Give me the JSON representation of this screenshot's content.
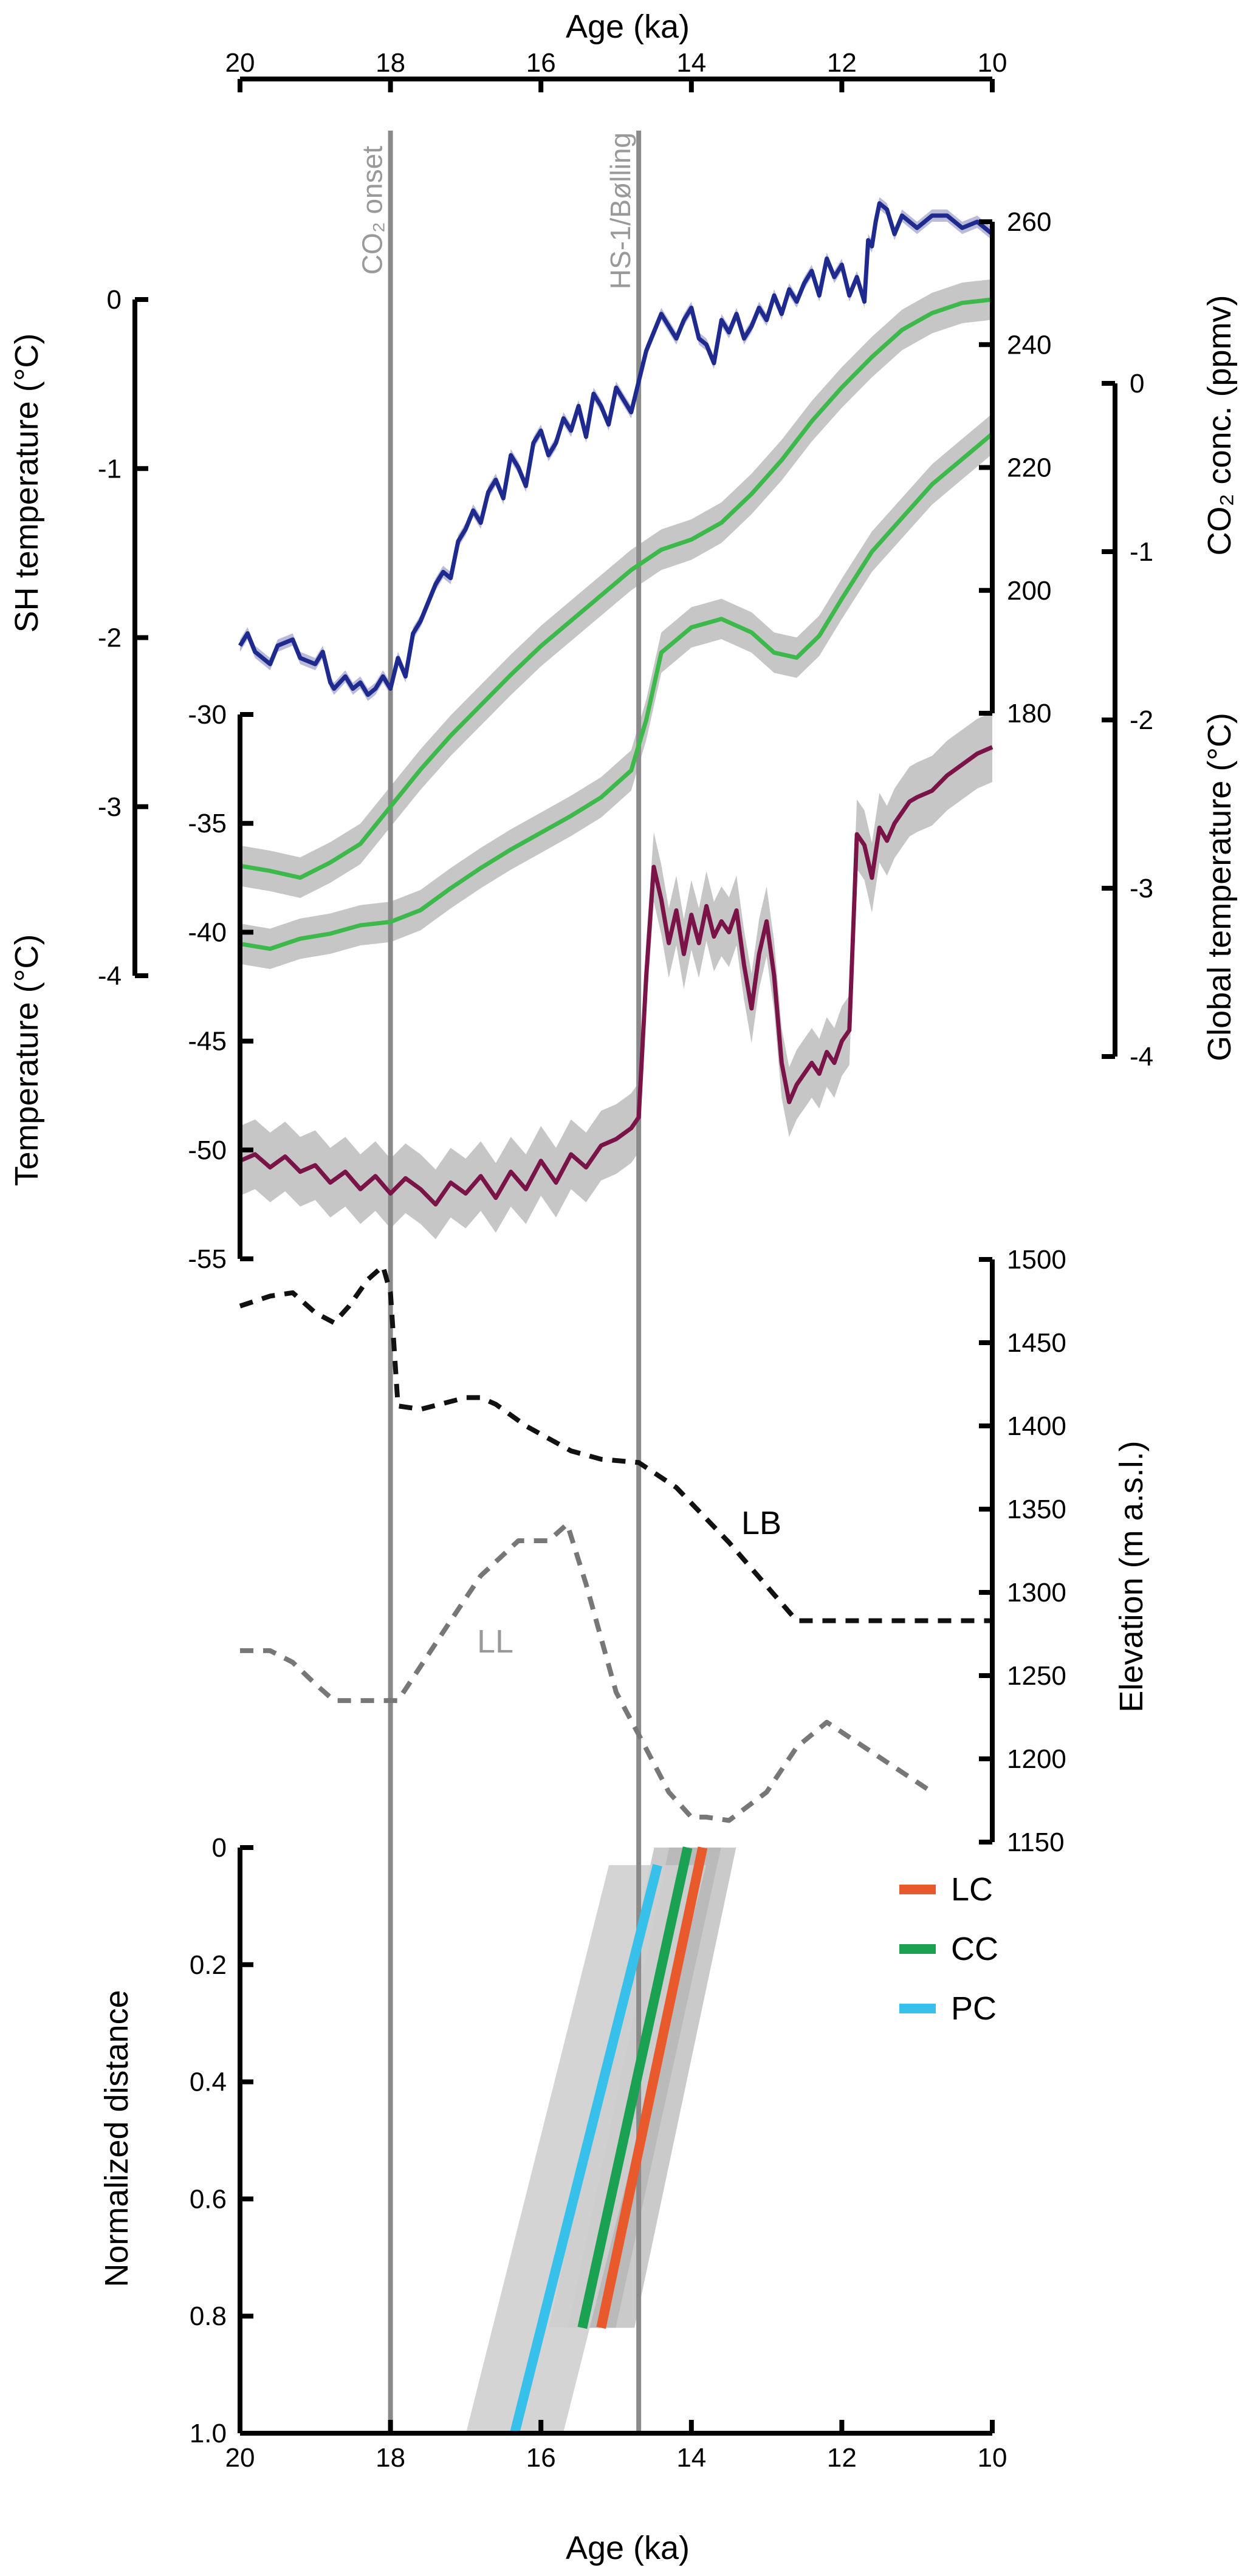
{
  "chart_data": [
    {
      "id": "top",
      "type": "line",
      "xlabel": "Age (ka)",
      "xlim": [
        20,
        10
      ],
      "xticks": [
        20,
        18,
        16,
        14,
        12,
        10
      ],
      "yaxes": [
        {
          "id": "sh",
          "label": "SH temperature (°C)",
          "ylim": [
            -4,
            0
          ],
          "ticks": [
            0,
            -1,
            -2,
            -3,
            -4
          ],
          "side": "left"
        },
        {
          "id": "co2",
          "label": "CO₂ conc. (ppmv)",
          "ylim": [
            180,
            260
          ],
          "ticks": [
            260,
            240,
            220,
            200,
            180
          ],
          "side": "right"
        },
        {
          "id": "glob",
          "label": "Global temperature (°C)",
          "ylim": [
            -4,
            0
          ],
          "ticks": [
            0,
            -1,
            -2,
            -3,
            -4
          ],
          "side": "right"
        },
        {
          "id": "temp",
          "label": "Temperature (°C)",
          "ylim": [
            -55,
            -30
          ],
          "ticks": [
            -30,
            -35,
            -40,
            -45,
            -50,
            -55
          ],
          "side": "left"
        },
        {
          "id": "elev",
          "label": "Elevation (m a.s.l.)",
          "ylim": [
            1150,
            1500
          ],
          "ticks": [
            1500,
            1450,
            1400,
            1350,
            1300,
            1250,
            1200,
            1150
          ],
          "side": "right"
        }
      ],
      "vlines": [
        {
          "x": 18.0,
          "label": "CO₂ onset"
        },
        {
          "x": 14.7,
          "label": "HS-1/Bølling"
        }
      ],
      "series": [
        {
          "name": "CO2",
          "axis": "co2",
          "color": "#1f2a8f",
          "x": [
            20,
            19.9,
            19.8,
            19.6,
            19.5,
            19.3,
            19.2,
            19.0,
            18.9,
            18.8,
            18.75,
            18.6,
            18.5,
            18.4,
            18.3,
            18.2,
            18.1,
            18.0,
            17.9,
            17.8,
            17.7,
            17.6,
            17.5,
            17.4,
            17.3,
            17.2,
            17.1,
            17.0,
            16.9,
            16.8,
            16.7,
            16.6,
            16.5,
            16.4,
            16.3,
            16.2,
            16.1,
            16.0,
            15.9,
            15.8,
            15.7,
            15.6,
            15.5,
            15.4,
            15.3,
            15.2,
            15.1,
            15.0,
            14.9,
            14.8,
            14.7,
            14.6,
            14.5,
            14.4,
            14.3,
            14.2,
            14.1,
            14.0,
            13.9,
            13.8,
            13.7,
            13.6,
            13.5,
            13.4,
            13.3,
            13.2,
            13.1,
            13.0,
            12.9,
            12.8,
            12.7,
            12.6,
            12.5,
            12.4,
            12.3,
            12.2,
            12.1,
            12.0,
            11.9,
            11.8,
            11.7,
            11.65,
            11.6,
            11.55,
            11.5,
            11.4,
            11.3,
            11.2,
            11.0,
            10.9,
            10.8,
            10.6,
            10.4,
            10.2,
            10.0
          ],
          "y": [
            191,
            193,
            190,
            188,
            191,
            192,
            189,
            188,
            190,
            185,
            184,
            186,
            184,
            185,
            183,
            184,
            186,
            184,
            189,
            186,
            193,
            195,
            198,
            201,
            203,
            202,
            208,
            210,
            213,
            211,
            216,
            218,
            215,
            222,
            220,
            217,
            224,
            226,
            222,
            224,
            228,
            226,
            230,
            225,
            232,
            230,
            227,
            233,
            231,
            229,
            234,
            239,
            242,
            245,
            243,
            241,
            244,
            246,
            241,
            240,
            237,
            244,
            242,
            245,
            241,
            243,
            246,
            244,
            248,
            245,
            249,
            247,
            250,
            252,
            248,
            254,
            251,
            253,
            248,
            251,
            247,
            257,
            256,
            260,
            263,
            262,
            258,
            261,
            259,
            260,
            261,
            261,
            259,
            260,
            258
          ]
        },
        {
          "name": "SH temperature",
          "axis": "sh",
          "color": "#3db84a",
          "x": [
            20,
            19.6,
            19.2,
            18.8,
            18.4,
            18.0,
            17.6,
            17.2,
            16.8,
            16.4,
            16.0,
            15.6,
            15.2,
            14.8,
            14.4,
            14.0,
            13.6,
            13.2,
            12.8,
            12.4,
            12.0,
            11.6,
            11.2,
            10.8,
            10.4,
            10.0
          ],
          "y": [
            -3.35,
            -3.38,
            -3.42,
            -3.33,
            -3.22,
            -3.0,
            -2.78,
            -2.58,
            -2.4,
            -2.22,
            -2.05,
            -1.9,
            -1.75,
            -1.6,
            -1.48,
            -1.42,
            -1.32,
            -1.15,
            -0.95,
            -0.72,
            -0.52,
            -0.34,
            -0.18,
            -0.08,
            -0.02,
            0.0
          ]
        },
        {
          "name": "Global temperature",
          "axis": "glob",
          "color": "#3db84a",
          "x": [
            20,
            19.6,
            19.2,
            18.8,
            18.4,
            18.0,
            17.6,
            17.2,
            16.8,
            16.4,
            16.0,
            15.6,
            15.2,
            14.8,
            14.6,
            14.4,
            14.0,
            13.6,
            13.2,
            12.9,
            12.6,
            12.3,
            12.0,
            11.6,
            11.2,
            10.8,
            10.4,
            10.0
          ],
          "y": [
            -3.33,
            -3.36,
            -3.3,
            -3.27,
            -3.22,
            -3.2,
            -3.13,
            -3.0,
            -2.88,
            -2.77,
            -2.67,
            -2.57,
            -2.46,
            -2.3,
            -2.0,
            -1.6,
            -1.45,
            -1.4,
            -1.48,
            -1.6,
            -1.63,
            -1.5,
            -1.28,
            -1.0,
            -0.8,
            -0.6,
            -0.45,
            -0.3
          ]
        },
        {
          "name": "Temperature",
          "axis": "temp",
          "color": "#7a1448",
          "x": [
            20,
            19.8,
            19.6,
            19.4,
            19.2,
            19.0,
            18.8,
            18.6,
            18.4,
            18.2,
            18.0,
            17.8,
            17.6,
            17.4,
            17.2,
            17.0,
            16.8,
            16.6,
            16.4,
            16.2,
            16.0,
            15.8,
            15.6,
            15.4,
            15.2,
            15.0,
            14.8,
            14.7,
            14.6,
            14.5,
            14.4,
            14.3,
            14.2,
            14.1,
            14.0,
            13.9,
            13.8,
            13.7,
            13.6,
            13.5,
            13.4,
            13.3,
            13.2,
            13.1,
            13.0,
            12.9,
            12.8,
            12.7,
            12.6,
            12.5,
            12.4,
            12.3,
            12.2,
            12.1,
            12.0,
            11.9,
            11.8,
            11.7,
            11.6,
            11.5,
            11.4,
            11.3,
            11.2,
            11.1,
            11.0,
            10.8,
            10.6,
            10.4,
            10.2,
            10.0
          ],
          "y": [
            -50.5,
            -50.2,
            -50.8,
            -50.3,
            -51.0,
            -50.7,
            -51.5,
            -51.0,
            -51.8,
            -51.2,
            -52.0,
            -51.3,
            -51.8,
            -52.5,
            -51.5,
            -52.0,
            -51.2,
            -52.2,
            -51.0,
            -51.8,
            -50.5,
            -51.5,
            -50.2,
            -50.8,
            -49.8,
            -49.5,
            -49.0,
            -48.5,
            -42.0,
            -37.0,
            -38.5,
            -40.5,
            -39.0,
            -41.0,
            -39.2,
            -40.5,
            -38.8,
            -40.2,
            -39.5,
            -40.0,
            -39.0,
            -41.5,
            -43.5,
            -41.0,
            -39.5,
            -42.0,
            -46.0,
            -47.8,
            -47.0,
            -46.5,
            -46.0,
            -46.5,
            -45.5,
            -46.0,
            -45.0,
            -44.5,
            -35.5,
            -36.0,
            -37.5,
            -35.2,
            -35.8,
            -35.0,
            -34.5,
            -34.0,
            -33.8,
            -33.5,
            -32.8,
            -32.3,
            -31.8,
            -31.5
          ]
        },
        {
          "name": "LB",
          "axis": "elev",
          "color": "#111111",
          "dash": true,
          "x": [
            20,
            19.6,
            19.3,
            19.0,
            18.75,
            18.55,
            18.3,
            18.1,
            18.0,
            17.9,
            17.6,
            17.0,
            16.8,
            16.6,
            16.2,
            15.6,
            15.2,
            14.7,
            14.2,
            13.5,
            12.6,
            12.0,
            11.5,
            11.0,
            10.0
          ],
          "y": [
            1472,
            1478,
            1480,
            1468,
            1462,
            1472,
            1488,
            1496,
            1480,
            1412,
            1410,
            1417,
            1417,
            1413,
            1400,
            1385,
            1380,
            1378,
            1363,
            1330,
            1283,
            1283,
            1283,
            1283,
            1283
          ]
        },
        {
          "name": "LL",
          "axis": "elev",
          "color": "#777777",
          "dash": true,
          "x": [
            20,
            19.6,
            19.3,
            19.0,
            18.75,
            18.2,
            17.9,
            17.2,
            16.8,
            16.3,
            15.9,
            15.65,
            15.4,
            15.0,
            14.6,
            14.3,
            14.0,
            13.8,
            13.5,
            13.0,
            12.6,
            12.2,
            11.6,
            11.0,
            10.8
          ],
          "y": [
            1265,
            1265,
            1258,
            1245,
            1235,
            1235,
            1235,
            1283,
            1310,
            1331,
            1331,
            1341,
            1305,
            1240,
            1206,
            1180,
            1165,
            1165,
            1163,
            1180,
            1207,
            1222,
            1204,
            1186,
            1180
          ]
        }
      ],
      "annotations": [
        "LB",
        "LL"
      ]
    },
    {
      "id": "bottom",
      "type": "line",
      "xlabel": "Age (ka)",
      "ylabel": "Normalized distance",
      "xlim": [
        20,
        10
      ],
      "xticks": [
        20,
        18,
        16,
        14,
        12,
        10
      ],
      "ylim": [
        1.0,
        0
      ],
      "yticks": [
        "0",
        "0.2",
        "0.4",
        "0.6",
        "0.8",
        "1.0"
      ],
      "legend_position": "right",
      "series": [
        {
          "name": "LC",
          "color": "#e85a2c",
          "x": [
            13.85,
            15.2
          ],
          "y": [
            0.0,
            0.82
          ]
        },
        {
          "name": "CC",
          "color": "#1aa152",
          "x": [
            14.05,
            15.45
          ],
          "y": [
            0.0,
            0.82
          ]
        },
        {
          "name": "PC",
          "color": "#37c0ea",
          "x": [
            14.45,
            16.35
          ],
          "y": [
            0.03,
            1.0
          ]
        }
      ]
    }
  ]
}
